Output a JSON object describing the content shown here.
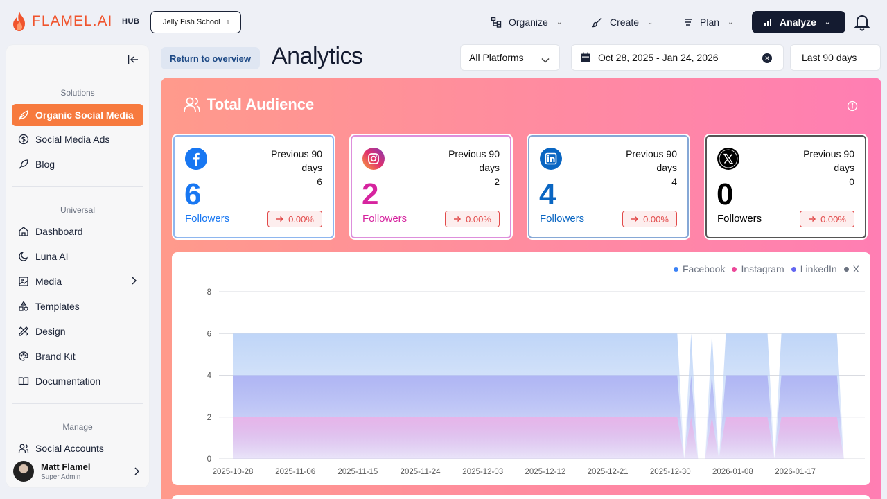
{
  "app": {
    "name": "FLAMEL.AI",
    "hub_label": "HUB",
    "workspace": "Jelly Fish School"
  },
  "nav": {
    "organize": "Organize",
    "create": "Create",
    "plan": "Plan",
    "analyze": "Analyze"
  },
  "sidebar": {
    "solutions_label": "Solutions",
    "solutions": [
      {
        "label": "Organic Social Media",
        "icon": "leaf-icon",
        "active": true
      },
      {
        "label": "Social Media Ads",
        "icon": "dollar-icon"
      },
      {
        "label": "Blog",
        "icon": "quill-icon"
      }
    ],
    "universal_label": "Universal",
    "universal": [
      {
        "label": "Dashboard",
        "icon": "home-icon"
      },
      {
        "label": "Luna AI",
        "icon": "moon-icon"
      },
      {
        "label": "Media",
        "icon": "image-icon"
      },
      {
        "label": "Templates",
        "icon": "shapes-icon"
      },
      {
        "label": "Design",
        "icon": "design-icon"
      },
      {
        "label": "Brand Kit",
        "icon": "palette-icon"
      },
      {
        "label": "Documentation",
        "icon": "book-icon"
      }
    ],
    "manage_label": "Manage",
    "manage": [
      {
        "label": "Social Accounts",
        "icon": "users-icon"
      }
    ],
    "user": {
      "name": "Matt Flamel",
      "role": "Super Admin"
    }
  },
  "header": {
    "return_label": "Return to overview",
    "title": "Analytics",
    "platform_filter": "All Platforms",
    "date_range": "Oct 28, 2025 - Jan 24, 2026",
    "period": "Last 90 days"
  },
  "audience": {
    "title": "Total Audience",
    "cards": [
      {
        "platform": "Facebook",
        "icon": "facebook-icon",
        "color": "#1877f2",
        "prev_label": "Previous 90 days",
        "prev_value": "6",
        "followers": "6",
        "followers_label": "Followers",
        "change": "0.00%"
      },
      {
        "platform": "Instagram",
        "icon": "instagram-icon",
        "color": "#d6249f",
        "prev_label": "Previous 90 days",
        "prev_value": "2",
        "followers": "2",
        "followers_label": "Followers",
        "change": "0.00%"
      },
      {
        "platform": "LinkedIn",
        "icon": "linkedin-icon",
        "color": "#0a66c2",
        "prev_label": "Previous 90 days",
        "prev_value": "4",
        "followers": "4",
        "followers_label": "Followers",
        "change": "0.00%"
      },
      {
        "platform": "X",
        "icon": "x-icon",
        "color": "#000000",
        "prev_label": "Previous 90 days",
        "prev_value": "0",
        "followers": "0",
        "followers_label": "Followers",
        "change": "0.00%"
      }
    ]
  },
  "chart_data": {
    "type": "area",
    "ylim": [
      0,
      8
    ],
    "yticks": [
      0,
      2,
      4,
      6,
      8
    ],
    "x_tick_labels": [
      "2025-10-28",
      "2025-11-06",
      "2025-11-15",
      "2025-11-24",
      "2025-12-03",
      "2025-12-12",
      "2025-12-21",
      "2025-12-30",
      "2026-01-08",
      "2026-01-17"
    ],
    "grid": true,
    "legend_position": "top-right",
    "series": [
      {
        "name": "Facebook",
        "color": "#3b82f6",
        "fill": "#bcd3f7",
        "x_start": "2025-10-28",
        "values": [
          6,
          6,
          6,
          6,
          6,
          6,
          6,
          6,
          6,
          6,
          6,
          6,
          6,
          6,
          6,
          6,
          6,
          6,
          6,
          6,
          6,
          6,
          6,
          6,
          6,
          6,
          6,
          6,
          6,
          6,
          6,
          6,
          6,
          6,
          6,
          6,
          6,
          6,
          6,
          6,
          6,
          6,
          6,
          6,
          6,
          6,
          6,
          6,
          6,
          6,
          6,
          6,
          6,
          6,
          6,
          6,
          6,
          6,
          6,
          6,
          6,
          6,
          6,
          6,
          6,
          0,
          6,
          0,
          0,
          6,
          0,
          6,
          6,
          6,
          6,
          6,
          6,
          6,
          0,
          6,
          6,
          6,
          6,
          6,
          6,
          6,
          6,
          6,
          0
        ]
      },
      {
        "name": "Instagram",
        "color": "#ec4899",
        "fill": "#e9b3e8",
        "x_start": "2025-10-28",
        "values": [
          2,
          2,
          2,
          2,
          2,
          2,
          2,
          2,
          2,
          2,
          2,
          2,
          2,
          2,
          2,
          2,
          2,
          2,
          2,
          2,
          2,
          2,
          2,
          2,
          2,
          2,
          2,
          2,
          2,
          2,
          2,
          2,
          2,
          2,
          2,
          2,
          2,
          2,
          2,
          2,
          2,
          2,
          2,
          2,
          2,
          2,
          2,
          2,
          2,
          2,
          2,
          2,
          2,
          2,
          2,
          2,
          2,
          2,
          2,
          2,
          2,
          2,
          2,
          2,
          2,
          0,
          2,
          0,
          0,
          2,
          0,
          2,
          2,
          2,
          2,
          2,
          2,
          2,
          0,
          2,
          2,
          2,
          2,
          2,
          2,
          2,
          2,
          2,
          0
        ]
      },
      {
        "name": "LinkedIn",
        "color": "#6366f1",
        "fill": "#aeb3f3",
        "x_start": "2025-10-28",
        "values": [
          4,
          4,
          4,
          4,
          4,
          4,
          4,
          4,
          4,
          4,
          4,
          4,
          4,
          4,
          4,
          4,
          4,
          4,
          4,
          4,
          4,
          4,
          4,
          4,
          4,
          4,
          4,
          4,
          4,
          4,
          4,
          4,
          4,
          4,
          4,
          4,
          4,
          4,
          4,
          4,
          4,
          4,
          4,
          4,
          4,
          4,
          4,
          4,
          4,
          4,
          4,
          4,
          4,
          4,
          4,
          4,
          4,
          4,
          4,
          4,
          4,
          4,
          4,
          4,
          4,
          0,
          4,
          0,
          0,
          4,
          0,
          4,
          4,
          4,
          4,
          4,
          4,
          4,
          0,
          4,
          4,
          4,
          4,
          4,
          4,
          4,
          4,
          4,
          0
        ]
      },
      {
        "name": "X",
        "color": "#6b7280",
        "fill": "#d1d5db",
        "x_start": "2025-10-28",
        "values": [
          0,
          0,
          0,
          0,
          0,
          0,
          0,
          0,
          0,
          0,
          0,
          0,
          0,
          0,
          0,
          0,
          0,
          0,
          0,
          0,
          0,
          0,
          0,
          0,
          0,
          0,
          0,
          0,
          0,
          0,
          0,
          0,
          0,
          0,
          0,
          0,
          0,
          0,
          0,
          0,
          0,
          0,
          0,
          0,
          0,
          0,
          0,
          0,
          0,
          0,
          0,
          0,
          0,
          0,
          0,
          0,
          0,
          0,
          0,
          0,
          0,
          0,
          0,
          0,
          0,
          0,
          0,
          0,
          0,
          0,
          0,
          0,
          0,
          0,
          0,
          0,
          0,
          0,
          0,
          0,
          0,
          0,
          0,
          0,
          0,
          0,
          0,
          0,
          0
        ]
      }
    ]
  }
}
